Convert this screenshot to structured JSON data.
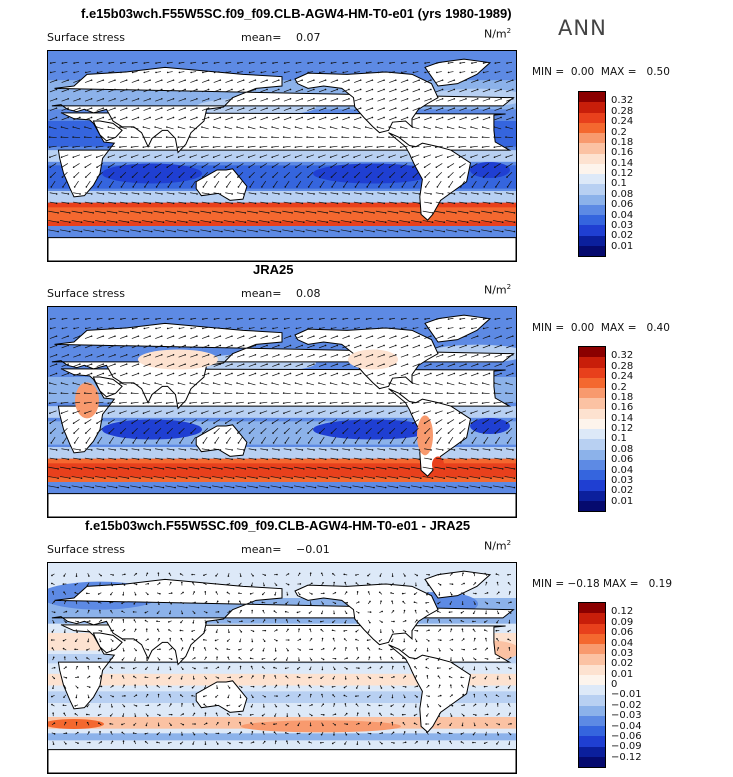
{
  "season": "ANN",
  "panels": [
    {
      "title": "f.e15b03wch.F55W5SC.f09_f09.CLB-AGW4-HM-T0-e01 (yrs 1980-1989)",
      "variable": "Surface stress",
      "mean_label": "mean=",
      "mean_value": "0.07",
      "units": "N/m",
      "units_exp": "2",
      "min_label": "MIN =",
      "min_value": "0.00",
      "max_label": "MAX =",
      "max_value": "0.50",
      "colorbar": {
        "labels": [
          "0.32",
          "0.28",
          "0.24",
          "0.2",
          "0.18",
          "0.16",
          "0.14",
          "0.12",
          "0.1",
          "0.08",
          "0.06",
          "0.04",
          "0.03",
          "0.02",
          "0.01"
        ],
        "colors": [
          "#8b0000",
          "#c81e0a",
          "#e8401c",
          "#f4682f",
          "#f89a6e",
          "#fbc2a3",
          "#fde2d0",
          "#fdf4ec",
          "#dde9f8",
          "#b8d0f2",
          "#8cb2ea",
          "#5d8ae4",
          "#3565de",
          "#1f3fd2",
          "#0b1f9c",
          "#050a6e"
        ]
      }
    },
    {
      "title": "JRA25",
      "variable": "Surface stress",
      "mean_label": "mean=",
      "mean_value": "0.08",
      "units": "N/m",
      "units_exp": "2",
      "min_label": "MIN =",
      "min_value": "0.00",
      "max_label": "MAX =",
      "max_value": "0.40",
      "colorbar": {
        "labels": [
          "0.32",
          "0.28",
          "0.24",
          "0.2",
          "0.18",
          "0.16",
          "0.14",
          "0.12",
          "0.1",
          "0.08",
          "0.06",
          "0.04",
          "0.03",
          "0.02",
          "0.01"
        ],
        "colors": [
          "#8b0000",
          "#c81e0a",
          "#e8401c",
          "#f4682f",
          "#f89a6e",
          "#fbc2a3",
          "#fde2d0",
          "#fdf4ec",
          "#dde9f8",
          "#b8d0f2",
          "#8cb2ea",
          "#5d8ae4",
          "#3565de",
          "#1f3fd2",
          "#0b1f9c",
          "#050a6e"
        ]
      }
    },
    {
      "title": "f.e15b03wch.F55W5SC.f09_f09.CLB-AGW4-HM-T0-e01 - JRA25",
      "variable": "Surface stress",
      "mean_label": "mean=",
      "mean_value": "−0.01",
      "units": "N/m",
      "units_exp": "2",
      "min_label": "MIN =",
      "min_value": "−0.18",
      "max_label": "MAX =",
      "max_value": "0.19",
      "colorbar": {
        "labels": [
          "0.12",
          "0.09",
          "0.06",
          "0.04",
          "0.03",
          "0.02",
          "0.01",
          "0",
          "−0.01",
          "−0.02",
          "−0.03",
          "−0.04",
          "−0.06",
          "−0.09",
          "−0.12"
        ],
        "colors": [
          "#8b0000",
          "#c81e0a",
          "#e8401c",
          "#f4682f",
          "#f89a6e",
          "#fbc2a3",
          "#fde2d0",
          "#fdf4ec",
          "#dde9f8",
          "#b8d0f2",
          "#8cb2ea",
          "#5d8ae4",
          "#3565de",
          "#1f3fd2",
          "#0b1f9c",
          "#050a6e"
        ]
      }
    }
  ],
  "chart_data": [
    {
      "type": "heatmap",
      "title": "f.e15b03wch.F55W5SC.f09_f09.CLB-AGW4-HM-T0-e01 (yrs 1980-1989)",
      "variable": "Surface stress",
      "units": "N/m2",
      "mean": 0.07,
      "min": 0.0,
      "max": 0.5,
      "contour_levels": [
        0.01,
        0.02,
        0.03,
        0.04,
        0.06,
        0.08,
        0.1,
        0.12,
        0.14,
        0.16,
        0.18,
        0.2,
        0.24,
        0.28,
        0.32
      ]
    },
    {
      "type": "heatmap",
      "title": "JRA25",
      "variable": "Surface stress",
      "units": "N/m2",
      "mean": 0.08,
      "min": 0.0,
      "max": 0.4,
      "contour_levels": [
        0.01,
        0.02,
        0.03,
        0.04,
        0.06,
        0.08,
        0.1,
        0.12,
        0.14,
        0.16,
        0.18,
        0.2,
        0.24,
        0.28,
        0.32
      ]
    },
    {
      "type": "heatmap",
      "title": "f.e15b03wch.F55W5SC.f09_f09.CLB-AGW4-HM-T0-e01 - JRA25",
      "variable": "Surface stress",
      "units": "N/m2",
      "mean": -0.01,
      "min": -0.18,
      "max": 0.19,
      "contour_levels": [
        -0.12,
        -0.09,
        -0.06,
        -0.04,
        -0.03,
        -0.02,
        -0.01,
        0,
        0.01,
        0.02,
        0.03,
        0.04,
        0.06,
        0.09,
        0.12
      ]
    }
  ]
}
